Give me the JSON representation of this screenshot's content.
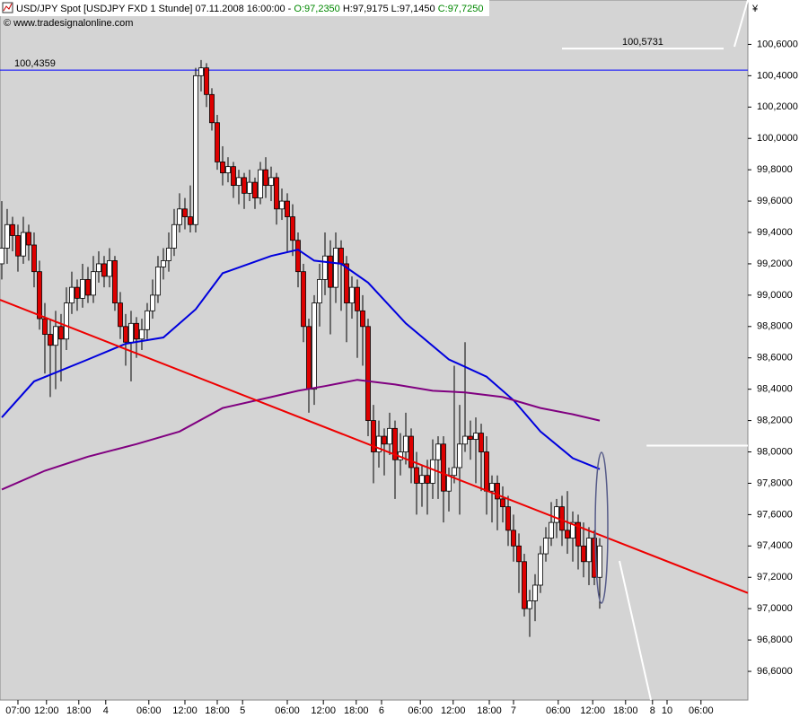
{
  "header": {
    "title": "USD/JPY Spot [USDJPY FXD  1 Stunde] 07.11.2008 16:00:00 -",
    "open": "O:97,2350",
    "high_low": "H:97,9175 L:97,1450",
    "close": "C:97,7250",
    "source": "© www.tradesignalonline.com"
  },
  "chart_data": {
    "type": "candlestick",
    "currency": "¥",
    "xlim": [
      -0.33,
      138.5
    ],
    "ylim": [
      96.417,
      100.883
    ],
    "yticks": [
      {
        "value": 96.6,
        "label": "96,6000"
      },
      {
        "value": 96.8,
        "label": "96,8000"
      },
      {
        "value": 97,
        "label": "97,0000"
      },
      {
        "value": 97.2,
        "label": "97,2000"
      },
      {
        "value": 97.4,
        "label": "97,4000"
      },
      {
        "value": 97.6,
        "label": "97,6000"
      },
      {
        "value": 97.8,
        "label": "97,8000"
      },
      {
        "value": 98,
        "label": "98,0000"
      },
      {
        "value": 98.2,
        "label": "98,2000"
      },
      {
        "value": 98.4,
        "label": "98,4000"
      },
      {
        "value": 98.6,
        "label": "98,6000"
      },
      {
        "value": 98.8,
        "label": "98,8000"
      },
      {
        "value": 99,
        "label": "99,0000"
      },
      {
        "value": 99.2,
        "label": "99,2000"
      },
      {
        "value": 99.4,
        "label": "99,4000"
      },
      {
        "value": 99.6,
        "label": "99,6000"
      },
      {
        "value": 99.8,
        "label": "99,8000"
      },
      {
        "value": 100,
        "label": "100,0000"
      },
      {
        "value": 100.2,
        "label": "100,2000"
      },
      {
        "value": 100.4,
        "label": "100,4000"
      },
      {
        "value": 100.6,
        "label": "100,6000"
      }
    ],
    "xticks": [
      {
        "value": 3,
        "label": "07:00"
      },
      {
        "value": 8.3,
        "label": "12:00"
      },
      {
        "value": 14.3,
        "label": "18:00"
      },
      {
        "value": 19.3,
        "label": "4"
      },
      {
        "value": 27.3,
        "label": "06:00"
      },
      {
        "value": 34,
        "label": "12:00"
      },
      {
        "value": 40,
        "label": "18:00"
      },
      {
        "value": 44.7,
        "label": "5"
      },
      {
        "value": 53,
        "label": "06:00"
      },
      {
        "value": 59.7,
        "label": "12:00"
      },
      {
        "value": 65.8,
        "label": "18:00"
      },
      {
        "value": 70.5,
        "label": "6"
      },
      {
        "value": 77.7,
        "label": "06:00"
      },
      {
        "value": 83.8,
        "label": "12:00"
      },
      {
        "value": 90.5,
        "label": "18:00"
      },
      {
        "value": 95,
        "label": "7"
      },
      {
        "value": 103.3,
        "label": "06:00"
      },
      {
        "value": 109.7,
        "label": "12:00"
      },
      {
        "value": 115.8,
        "label": "18:00"
      },
      {
        "value": 120.8,
        "label": "8"
      },
      {
        "value": 123.5,
        "label": "10"
      },
      {
        "value": 129.8,
        "label": "06:00"
      }
    ],
    "up_color": "#ffffff",
    "down_color": "#dd0000",
    "candles": [
      [
        99.2,
        99.6,
        99.1,
        99.3
      ],
      [
        99.3,
        99.55,
        99.2,
        99.45
      ],
      [
        99.45,
        99.5,
        99.28,
        99.38
      ],
      [
        99.38,
        99.45,
        99.15,
        99.25
      ],
      [
        99.25,
        99.5,
        99.2,
        99.4
      ],
      [
        99.4,
        99.45,
        99.22,
        99.32
      ],
      [
        99.32,
        99.4,
        99.05,
        99.15
      ],
      [
        99.15,
        99.22,
        98.78,
        98.85
      ],
      [
        98.85,
        98.95,
        98.5,
        98.75
      ],
      [
        98.75,
        98.85,
        98.35,
        98.68
      ],
      [
        98.68,
        98.9,
        98.4,
        98.8
      ],
      [
        98.8,
        98.88,
        98.45,
        98.72
      ],
      [
        98.72,
        99.05,
        98.65,
        98.95
      ],
      [
        98.95,
        99.15,
        98.88,
        99.05
      ],
      [
        99.05,
        99.1,
        98.9,
        98.98
      ],
      [
        98.98,
        99.2,
        98.92,
        99.1
      ],
      [
        99.1,
        99.18,
        98.95,
        99.0
      ],
      [
        99.0,
        99.25,
        98.95,
        99.15
      ],
      [
        99.15,
        99.28,
        99.08,
        99.2
      ],
      [
        99.2,
        99.25,
        99.05,
        99.12
      ],
      [
        99.12,
        99.3,
        99.05,
        99.22
      ],
      [
        99.22,
        99.25,
        98.9,
        98.95
      ],
      [
        98.95,
        99.02,
        98.72,
        98.8
      ],
      [
        98.8,
        98.88,
        98.55,
        98.7
      ],
      [
        98.7,
        98.9,
        98.45,
        98.82
      ],
      [
        98.82,
        98.86,
        98.6,
        98.72
      ],
      [
        98.72,
        98.85,
        98.65,
        98.78
      ],
      [
        98.78,
        98.95,
        98.72,
        98.9
      ],
      [
        98.9,
        99.1,
        98.85,
        99.0
      ],
      [
        99.0,
        99.25,
        98.95,
        99.18
      ],
      [
        99.18,
        99.3,
        99.1,
        99.22
      ],
      [
        99.22,
        99.4,
        99.15,
        99.3
      ],
      [
        99.3,
        99.55,
        99.25,
        99.45
      ],
      [
        99.45,
        99.65,
        99.4,
        99.55
      ],
      [
        99.55,
        99.62,
        99.42,
        99.5
      ],
      [
        99.5,
        99.7,
        99.4,
        99.45
      ],
      [
        99.45,
        100.45,
        99.4,
        100.4
      ],
      [
        100.4,
        100.5,
        100.3,
        100.45
      ],
      [
        100.45,
        100.48,
        100.2,
        100.28
      ],
      [
        100.28,
        100.32,
        100.05,
        100.1
      ],
      [
        100.1,
        100.15,
        99.8,
        99.85
      ],
      [
        99.85,
        99.95,
        99.7,
        99.78
      ],
      [
        99.78,
        99.88,
        99.72,
        99.82
      ],
      [
        99.82,
        99.85,
        99.62,
        99.7
      ],
      [
        99.7,
        99.8,
        99.58,
        99.75
      ],
      [
        99.75,
        99.78,
        99.55,
        99.65
      ],
      [
        99.65,
        99.8,
        99.6,
        99.72
      ],
      [
        99.72,
        99.75,
        99.55,
        99.62
      ],
      [
        99.62,
        99.85,
        99.58,
        99.8
      ],
      [
        99.8,
        99.88,
        99.62,
        99.7
      ],
      [
        99.7,
        99.82,
        99.6,
        99.75
      ],
      [
        99.75,
        99.78,
        99.45,
        99.55
      ],
      [
        99.55,
        99.68,
        99.48,
        99.6
      ],
      [
        99.6,
        99.65,
        99.28,
        99.5
      ],
      [
        99.5,
        99.58,
        99.25,
        99.35
      ],
      [
        99.35,
        99.4,
        99.05,
        99.15
      ],
      [
        99.15,
        99.2,
        98.7,
        98.8
      ],
      [
        98.8,
        98.85,
        98.25,
        98.4
      ],
      [
        98.4,
        99.0,
        98.3,
        98.95
      ],
      [
        98.95,
        99.2,
        98.8,
        99.1
      ],
      [
        99.1,
        99.4,
        99.0,
        99.25
      ],
      [
        99.25,
        99.35,
        98.75,
        99.05
      ],
      [
        99.05,
        99.4,
        98.95,
        99.3
      ],
      [
        99.3,
        99.35,
        98.9,
        99.2
      ],
      [
        99.2,
        99.25,
        98.7,
        98.95
      ],
      [
        98.95,
        99.12,
        98.85,
        99.05
      ],
      [
        99.05,
        99.1,
        98.6,
        98.9
      ],
      [
        98.9,
        99.0,
        98.55,
        98.8
      ],
      [
        98.8,
        98.85,
        98.1,
        98.2
      ],
      [
        98.2,
        98.3,
        97.8,
        98.0
      ],
      [
        98.0,
        98.2,
        97.9,
        98.1
      ],
      [
        98.1,
        98.15,
        97.85,
        98.05
      ],
      [
        98.05,
        98.25,
        97.98,
        98.15
      ],
      [
        98.15,
        98.2,
        97.7,
        97.95
      ],
      [
        97.95,
        98.12,
        97.85,
        98.0
      ],
      [
        98.0,
        98.25,
        97.92,
        98.1
      ],
      [
        98.1,
        98.15,
        97.8,
        97.9
      ],
      [
        97.9,
        98.0,
        97.6,
        97.8
      ],
      [
        97.8,
        97.92,
        97.65,
        97.85
      ],
      [
        97.85,
        97.95,
        97.6,
        97.8
      ],
      [
        97.8,
        98.08,
        97.7,
        97.95
      ],
      [
        97.95,
        98.1,
        97.7,
        98.05
      ],
      [
        98.05,
        98.1,
        97.55,
        97.75
      ],
      [
        97.75,
        97.9,
        97.62,
        97.85
      ],
      [
        97.85,
        98.55,
        97.8,
        97.9
      ],
      [
        97.9,
        98.3,
        97.6,
        98.05
      ],
      [
        98.05,
        98.7,
        98.0,
        98.1
      ],
      [
        98.1,
        98.2,
        97.95,
        98.08
      ],
      [
        98.08,
        98.22,
        97.8,
        98.12
      ],
      [
        98.12,
        98.18,
        97.75,
        98.0
      ],
      [
        98.0,
        98.1,
        97.6,
        97.75
      ],
      [
        97.75,
        97.85,
        97.55,
        97.8
      ],
      [
        97.8,
        97.85,
        97.5,
        97.7
      ],
      [
        97.7,
        97.78,
        97.55,
        97.65
      ],
      [
        97.65,
        97.72,
        97.4,
        97.5
      ],
      [
        97.5,
        97.6,
        97.3,
        97.4
      ],
      [
        97.4,
        97.48,
        97.1,
        97.3
      ],
      [
        97.3,
        97.35,
        96.95,
        97.0
      ],
      [
        97.0,
        97.12,
        96.82,
        97.05
      ],
      [
        97.05,
        97.22,
        96.92,
        97.15
      ],
      [
        97.15,
        97.4,
        97.1,
        97.35
      ],
      [
        97.35,
        97.52,
        97.3,
        97.45
      ],
      [
        97.45,
        97.68,
        97.4,
        97.55
      ],
      [
        97.55,
        97.7,
        97.45,
        97.65
      ],
      [
        97.65,
        97.72,
        97.4,
        97.5
      ],
      [
        97.5,
        97.75,
        97.35,
        97.45
      ],
      [
        97.45,
        97.62,
        97.3,
        97.55
      ],
      [
        97.55,
        97.6,
        97.25,
        97.4
      ],
      [
        97.4,
        97.55,
        97.2,
        97.3
      ],
      [
        97.3,
        97.52,
        97.15,
        97.45
      ],
      [
        97.45,
        97.5,
        97.15,
        97.2
      ],
      [
        97.2,
        97.45,
        97.0,
        97.4
      ]
    ],
    "series": [
      {
        "color": "#0000dd",
        "x": [
          0,
          6,
          16,
          23,
          30,
          36,
          41,
          50,
          55,
          58,
          63,
          68,
          75,
          83,
          90,
          95,
          100,
          106,
          111
        ],
        "values": [
          98.22,
          98.45,
          98.59,
          98.69,
          98.73,
          98.91,
          99.14,
          99.25,
          99.29,
          99.22,
          99.2,
          99.08,
          98.82,
          98.59,
          98.48,
          98.33,
          98.13,
          97.96,
          97.89
        ]
      },
      {
        "color": "#800080",
        "x": [
          0,
          8,
          16,
          25,
          33,
          41,
          50,
          55,
          60,
          66,
          73,
          80,
          86,
          93,
          100,
          106,
          111
        ],
        "values": [
          97.76,
          97.88,
          97.97,
          98.05,
          98.13,
          98.28,
          98.35,
          98.39,
          98.42,
          98.46,
          98.43,
          98.39,
          98.38,
          98.35,
          98.28,
          98.24,
          98.2
        ]
      },
      {
        "color": "#ee0000",
        "x": [
          -0.33,
          138.5
        ],
        "values": [
          98.97,
          97.1
        ]
      }
    ],
    "hlines": [
      {
        "value": 100.4359,
        "label": "100,4359",
        "color": "#0000ff",
        "x": [
          -0.33,
          138.5
        ]
      },
      {
        "value": 100.5731,
        "label": "100,5731",
        "color": "#ffffff",
        "x": [
          104,
          134
        ]
      },
      {
        "value": 98.04,
        "color": "#ffffff",
        "x": [
          119.7,
          138.5
        ]
      }
    ]
  }
}
